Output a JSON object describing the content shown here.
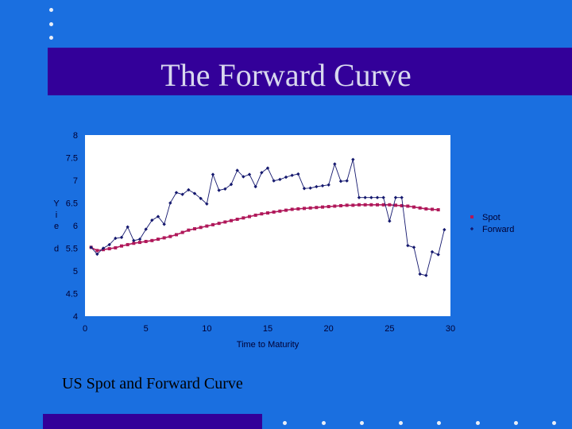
{
  "slide": {
    "title": "The Forward Curve",
    "caption": "US Spot and Forward Curve",
    "colors": {
      "background": "#1a6fe0",
      "band": "#330099",
      "title_text": "#d8d8ee",
      "plot_area": "#ffffff",
      "spot": "#b0185a",
      "forward": "#14186e",
      "axis_text": "#000033"
    }
  },
  "chart_data": {
    "type": "line",
    "title": "",
    "xlabel": "Time to Maturity",
    "ylabel": "Yield",
    "ylabel_glyphs": [
      "Y",
      "i",
      "e",
      "d"
    ],
    "xlim": [
      0,
      30
    ],
    "ylim": [
      4,
      8
    ],
    "x_ticks": [
      0,
      5,
      10,
      15,
      20,
      25,
      30
    ],
    "y_ticks": [
      4,
      4.5,
      5,
      5.5,
      6,
      6.5,
      7,
      7.5,
      8
    ],
    "y_tick_labels": [
      "4",
      "4.5",
      "5",
      "5.5",
      "6",
      "6.5",
      "7",
      "7.5",
      "8"
    ],
    "grid": false,
    "legend_position": "right",
    "series": [
      {
        "name": "Spot",
        "marker": "square",
        "points": [
          [
            0.5,
            5.52
          ],
          [
            1,
            5.45
          ],
          [
            1.5,
            5.47
          ],
          [
            2,
            5.49
          ],
          [
            2.5,
            5.51
          ],
          [
            3,
            5.55
          ],
          [
            3.5,
            5.58
          ],
          [
            4,
            5.61
          ],
          [
            4.5,
            5.63
          ],
          [
            5,
            5.65
          ],
          [
            5.5,
            5.67
          ],
          [
            6,
            5.7
          ],
          [
            6.5,
            5.73
          ],
          [
            7,
            5.76
          ],
          [
            7.5,
            5.8
          ],
          [
            8,
            5.85
          ],
          [
            8.5,
            5.9
          ],
          [
            9,
            5.93
          ],
          [
            9.5,
            5.96
          ],
          [
            10,
            5.99
          ],
          [
            10.5,
            6.02
          ],
          [
            11,
            6.05
          ],
          [
            11.5,
            6.08
          ],
          [
            12,
            6.11
          ],
          [
            12.5,
            6.14
          ],
          [
            13,
            6.17
          ],
          [
            13.5,
            6.2
          ],
          [
            14,
            6.23
          ],
          [
            14.5,
            6.26
          ],
          [
            15,
            6.28
          ],
          [
            15.5,
            6.3
          ],
          [
            16,
            6.32
          ],
          [
            16.5,
            6.34
          ],
          [
            17,
            6.36
          ],
          [
            17.5,
            6.37
          ],
          [
            18,
            6.38
          ],
          [
            18.5,
            6.39
          ],
          [
            19,
            6.4
          ],
          [
            19.5,
            6.41
          ],
          [
            20,
            6.42
          ],
          [
            20.5,
            6.43
          ],
          [
            21,
            6.44
          ],
          [
            21.5,
            6.45
          ],
          [
            22,
            6.45
          ],
          [
            22.5,
            6.46
          ],
          [
            23,
            6.46
          ],
          [
            23.5,
            6.46
          ],
          [
            24,
            6.46
          ],
          [
            24.5,
            6.46
          ],
          [
            25,
            6.46
          ],
          [
            25.5,
            6.45
          ],
          [
            26,
            6.44
          ],
          [
            26.5,
            6.43
          ],
          [
            27,
            6.41
          ],
          [
            27.5,
            6.39
          ],
          [
            28,
            6.37
          ],
          [
            28.5,
            6.36
          ],
          [
            29,
            6.35
          ]
        ]
      },
      {
        "name": "Forward",
        "marker": "diamond",
        "points": [
          [
            0.5,
            5.52
          ],
          [
            1,
            5.37
          ],
          [
            1.5,
            5.5
          ],
          [
            2,
            5.58
          ],
          [
            2.5,
            5.72
          ],
          [
            3,
            5.74
          ],
          [
            3.5,
            5.97
          ],
          [
            4,
            5.67
          ],
          [
            4.5,
            5.7
          ],
          [
            5,
            5.92
          ],
          [
            5.5,
            6.12
          ],
          [
            6,
            6.2
          ],
          [
            6.5,
            6.03
          ],
          [
            7,
            6.5
          ],
          [
            7.5,
            6.73
          ],
          [
            8,
            6.69
          ],
          [
            8.5,
            6.79
          ],
          [
            9,
            6.71
          ],
          [
            9.5,
            6.6
          ],
          [
            10,
            6.48
          ],
          [
            10.5,
            7.13
          ],
          [
            11,
            6.78
          ],
          [
            11.5,
            6.81
          ],
          [
            12,
            6.91
          ],
          [
            12.5,
            7.22
          ],
          [
            13,
            7.08
          ],
          [
            13.5,
            7.13
          ],
          [
            14,
            6.86
          ],
          [
            14.5,
            7.17
          ],
          [
            15,
            7.27
          ],
          [
            15.5,
            6.99
          ],
          [
            16,
            7.02
          ],
          [
            16.5,
            7.07
          ],
          [
            17,
            7.11
          ],
          [
            17.5,
            7.14
          ],
          [
            18,
            6.82
          ],
          [
            18.5,
            6.83
          ],
          [
            19,
            6.86
          ],
          [
            19.5,
            6.88
          ],
          [
            20,
            6.9
          ],
          [
            20.5,
            7.36
          ],
          [
            21,
            6.98
          ],
          [
            21.5,
            6.99
          ],
          [
            22,
            7.46
          ],
          [
            22.5,
            6.62
          ],
          [
            23,
            6.62
          ],
          [
            23.5,
            6.62
          ],
          [
            24,
            6.62
          ],
          [
            24.5,
            6.62
          ],
          [
            25,
            6.1
          ],
          [
            25.5,
            6.62
          ],
          [
            26,
            6.62
          ],
          [
            26.5,
            5.56
          ],
          [
            27,
            5.52
          ],
          [
            27.5,
            4.93
          ],
          [
            28,
            4.9
          ],
          [
            28.5,
            5.42
          ],
          [
            29,
            5.36
          ],
          [
            29.5,
            5.91
          ]
        ]
      }
    ]
  }
}
